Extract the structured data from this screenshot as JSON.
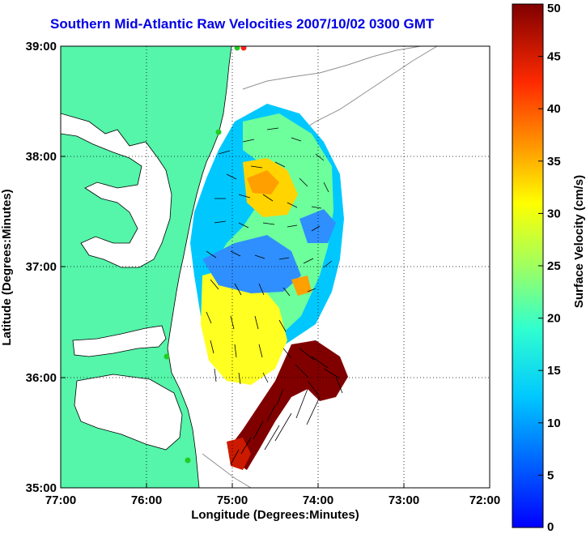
{
  "title": "Southern Mid-Atlantic Raw Velocities 2007/10/02 0300 GMT",
  "xlabel": "Longitude (Degrees:Minutes)",
  "ylabel": "Latitude (Degrees:Minutes)",
  "colorbar": {
    "label": "Surface Velocity (cm/s)",
    "ticks": [
      "0",
      "5",
      "10",
      "15",
      "20",
      "25",
      "30",
      "35",
      "40",
      "45",
      "50"
    ],
    "range": [
      0,
      50
    ]
  },
  "axes": {
    "x_ticks": [
      "77:00",
      "76:00",
      "75:00",
      "74:00",
      "73:00",
      "72:00"
    ],
    "y_ticks": [
      "39:00",
      "38:00",
      "37:00",
      "36:00",
      "35:00"
    ],
    "xlim": [
      -77,
      -72
    ],
    "ylim": [
      35,
      39
    ],
    "grid": true
  },
  "colors": {
    "land": "#55f5aa",
    "title": "#0000e6",
    "site_marker_active": "#22cc22",
    "site_marker_inactive": "#ff2020"
  }
}
